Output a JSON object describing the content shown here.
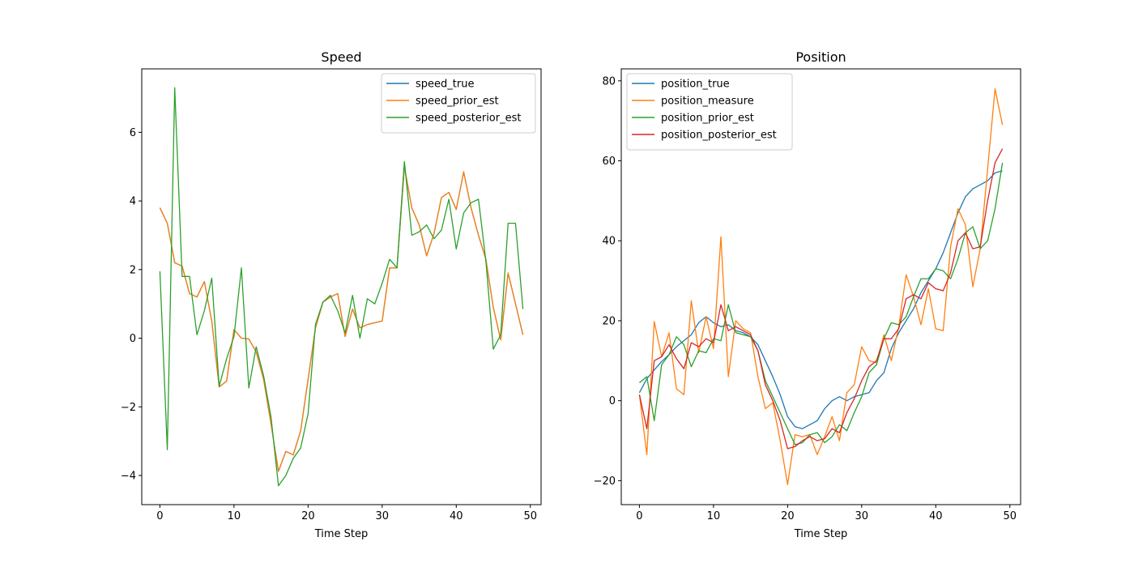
{
  "chart_data": [
    {
      "type": "line",
      "title": "Speed",
      "xlabel": "Time Step",
      "ylabel": "",
      "xlim": [
        -2.45,
        51.45
      ],
      "ylim": [
        -4.85,
        7.85
      ],
      "xticks": [
        0,
        10,
        20,
        30,
        40,
        50
      ],
      "yticks": [
        -4,
        -2,
        0,
        2,
        4,
        6
      ],
      "xtick_labels": [
        "0",
        "10",
        "20",
        "30",
        "40",
        "50"
      ],
      "ytick_labels": [
        "−4",
        "−2",
        "0",
        "2",
        "4",
        "6"
      ],
      "legend_position": "upper right",
      "grid": false,
      "x": [
        0,
        1,
        2,
        3,
        4,
        5,
        6,
        7,
        8,
        9,
        10,
        11,
        12,
        13,
        14,
        15,
        16,
        17,
        18,
        19,
        20,
        21,
        22,
        23,
        24,
        25,
        26,
        27,
        28,
        29,
        30,
        31,
        32,
        33,
        34,
        35,
        36,
        37,
        38,
        39,
        40,
        41,
        42,
        43,
        44,
        45,
        46,
        47,
        48,
        49
      ],
      "series": [
        {
          "name": "speed_true",
          "color": "#1f77b4",
          "values": [
            3.8,
            3.35,
            2.2,
            2.1,
            1.3,
            1.2,
            1.65,
            0.5,
            -1.42,
            -1.25,
            0.25,
            0.0,
            -0.02,
            -0.4,
            -1.2,
            -2.5,
            -3.88,
            -3.3,
            -3.4,
            -2.7,
            -1.2,
            0.3,
            1.05,
            1.2,
            1.3,
            0.05,
            0.85,
            0.3,
            0.4,
            0.45,
            0.5,
            2.05,
            2.05,
            5.0,
            3.8,
            3.3,
            2.4,
            3.05,
            4.1,
            4.25,
            3.75,
            4.85,
            3.8,
            3.0,
            2.3,
            0.9,
            -0.05,
            1.9,
            1.0,
            0.1
          ]
        },
        {
          "name": "speed_prior_est",
          "color": "#ff7f0e",
          "values": [
            3.8,
            3.35,
            2.2,
            2.1,
            1.3,
            1.2,
            1.65,
            0.5,
            -1.42,
            -1.25,
            0.25,
            0.0,
            -0.02,
            -0.4,
            -1.2,
            -2.5,
            -3.88,
            -3.3,
            -3.4,
            -2.7,
            -1.2,
            0.3,
            1.05,
            1.2,
            1.3,
            0.05,
            0.85,
            0.3,
            0.4,
            0.45,
            0.5,
            2.05,
            2.05,
            5.0,
            3.8,
            3.3,
            2.4,
            3.05,
            4.1,
            4.25,
            3.75,
            4.85,
            3.8,
            3.0,
            2.3,
            0.9,
            -0.05,
            1.9,
            1.0,
            0.1
          ]
        },
        {
          "name": "speed_posterior_est",
          "color": "#2ca02c",
          "values": [
            1.95,
            -3.25,
            7.3,
            1.8,
            1.8,
            0.1,
            0.8,
            1.75,
            -1.4,
            -0.6,
            0.05,
            2.05,
            -1.45,
            -0.25,
            -1.1,
            -2.3,
            -4.3,
            -4.0,
            -3.5,
            -3.2,
            -2.2,
            0.4,
            1.05,
            1.25,
            0.8,
            0.15,
            1.25,
            0.0,
            1.15,
            1.0,
            1.6,
            2.3,
            2.05,
            5.15,
            3.0,
            3.1,
            3.3,
            2.9,
            3.15,
            4.05,
            2.6,
            3.65,
            3.95,
            4.05,
            2.25,
            -0.32,
            0.1,
            3.35,
            3.35,
            0.85
          ]
        }
      ]
    },
    {
      "type": "line",
      "title": "Position",
      "xlabel": "Time Step",
      "ylabel": "",
      "xlim": [
        -2.45,
        51.45
      ],
      "ylim": [
        -26.0,
        83.0
      ],
      "xticks": [
        0,
        10,
        20,
        30,
        40,
        50
      ],
      "yticks": [
        -20,
        0,
        20,
        40,
        60,
        80
      ],
      "xtick_labels": [
        "0",
        "10",
        "20",
        "30",
        "40",
        "50"
      ],
      "ytick_labels": [
        "−20",
        "0",
        "20",
        "40",
        "60",
        "80"
      ],
      "legend_position": "upper left",
      "grid": false,
      "x": [
        0,
        1,
        2,
        3,
        4,
        5,
        6,
        7,
        8,
        9,
        10,
        11,
        12,
        13,
        14,
        15,
        16,
        17,
        18,
        19,
        20,
        21,
        22,
        23,
        24,
        25,
        26,
        27,
        28,
        29,
        30,
        31,
        32,
        33,
        34,
        35,
        36,
        37,
        38,
        39,
        40,
        41,
        42,
        43,
        44,
        45,
        46,
        47,
        48,
        49
      ],
      "series": [
        {
          "name": "position_true",
          "color": "#1f77b4",
          "values": [
            2.0,
            5.5,
            7.7,
            9.8,
            11.5,
            13.5,
            15.0,
            16.5,
            19.5,
            21.0,
            19.5,
            18.5,
            19.0,
            17.5,
            17.0,
            16.0,
            14.0,
            10.0,
            6.0,
            1.5,
            -4.0,
            -6.5,
            -7.0,
            -6.0,
            -5.0,
            -2.0,
            0.0,
            1.0,
            0.0,
            1.0,
            1.5,
            2.0,
            5.0,
            7.0,
            13.0,
            17.0,
            20.0,
            23.0,
            27.0,
            30.0,
            33.0,
            37.0,
            42.0,
            47.0,
            51.0,
            53.0,
            54.0,
            55.0,
            57.0,
            57.5
          ]
        },
        {
          "name": "position_measure",
          "color": "#ff7f0e",
          "values": [
            1.5,
            -13.5,
            19.8,
            11.0,
            17.0,
            3.0,
            1.5,
            25.0,
            12.0,
            21.0,
            13.0,
            41.0,
            6.0,
            20.0,
            18.0,
            17.0,
            6.0,
            -2.0,
            -0.5,
            -10.0,
            -21.0,
            -8.5,
            -9.0,
            -8.5,
            -13.5,
            -9.0,
            -4.0,
            -10.0,
            2.0,
            4.0,
            13.5,
            10.0,
            9.5,
            16.5,
            10.0,
            18.5,
            31.5,
            26.0,
            19.0,
            28.0,
            18.0,
            17.5,
            38.5,
            48.0,
            44.0,
            28.5,
            38.0,
            58.0,
            78.0,
            69.0
          ]
        },
        {
          "name": "position_prior_est",
          "color": "#2ca02c",
          "values": [
            4.5,
            6.0,
            -5.0,
            9.0,
            11.5,
            16.0,
            14.0,
            8.5,
            12.5,
            12.0,
            15.5,
            15.0,
            24.0,
            17.0,
            16.5,
            16.0,
            12.5,
            5.0,
            1.0,
            -3.0,
            -7.0,
            -11.0,
            -10.5,
            -8.5,
            -8.0,
            -10.5,
            -9.0,
            -6.0,
            -7.5,
            -3.0,
            1.0,
            7.0,
            9.0,
            15.5,
            19.5,
            19.0,
            21.0,
            26.0,
            30.5,
            30.5,
            33.0,
            32.5,
            30.5,
            35.5,
            42.0,
            43.5,
            38.0,
            40.0,
            48.0,
            59.5
          ]
        },
        {
          "name": "position_posterior_est",
          "color": "#d62728",
          "values": [
            1.5,
            -7.0,
            10.0,
            11.0,
            14.0,
            10.5,
            8.0,
            14.5,
            13.5,
            15.5,
            14.5,
            24.0,
            17.5,
            18.5,
            17.5,
            16.5,
            12.5,
            4.0,
            0.0,
            -5.0,
            -12.0,
            -11.5,
            -10.0,
            -9.0,
            -10.0,
            -9.5,
            -7.0,
            -8.0,
            -3.0,
            0.5,
            5.0,
            8.5,
            10.0,
            15.5,
            15.5,
            18.0,
            25.5,
            26.5,
            25.5,
            29.5,
            28.0,
            27.5,
            32.0,
            40.0,
            42.0,
            38.0,
            38.5,
            50.0,
            59.5,
            63.0
          ]
        }
      ]
    }
  ]
}
